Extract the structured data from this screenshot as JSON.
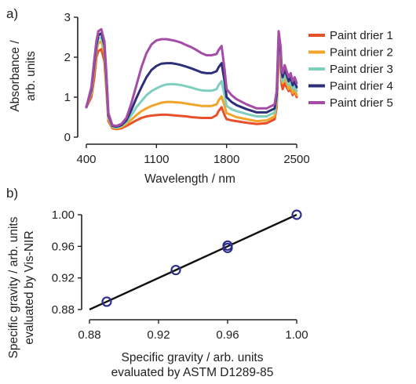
{
  "chart_data": [
    {
      "panel_label": "a)",
      "type": "line",
      "title": "",
      "xlabel": "Wavelength / nm",
      "ylabel": [
        "Absorbance /",
        "arb. units"
      ],
      "xlim": [
        400,
        2500
      ],
      "ylim": [
        0,
        3
      ],
      "xticks": [
        400,
        1100,
        1800,
        2500
      ],
      "yticks": [
        0,
        1,
        2,
        3
      ],
      "grid": false,
      "legend_placement": "right",
      "x": [
        400,
        450,
        480,
        500,
        520,
        550,
        580,
        600,
        620,
        660,
        700,
        750,
        800,
        850,
        900,
        950,
        1000,
        1050,
        1100,
        1150,
        1200,
        1250,
        1300,
        1350,
        1400,
        1450,
        1500,
        1550,
        1600,
        1650,
        1700,
        1720,
        1750,
        1780,
        1800,
        1850,
        1900,
        2000,
        2100,
        2200,
        2280,
        2300,
        2320,
        2340,
        2350,
        2360,
        2380,
        2400,
        2420,
        2440,
        2460,
        2480,
        2500
      ],
      "series": [
        {
          "name": "Paint drier 1",
          "color": "#e8502c",
          "values": [
            0.75,
            1.0,
            1.5,
            2.0,
            2.15,
            2.2,
            1.9,
            1.2,
            0.4,
            0.22,
            0.2,
            0.22,
            0.28,
            0.35,
            0.42,
            0.48,
            0.52,
            0.54,
            0.55,
            0.56,
            0.56,
            0.55,
            0.54,
            0.53,
            0.52,
            0.5,
            0.49,
            0.48,
            0.48,
            0.48,
            0.55,
            0.65,
            0.75,
            0.55,
            0.45,
            0.42,
            0.4,
            0.36,
            0.33,
            0.35,
            0.45,
            0.75,
            2.0,
            1.8,
            1.3,
            1.2,
            1.35,
            1.25,
            1.15,
            1.2,
            1.05,
            1.15,
            1.0
          ]
        },
        {
          "name": "Paint drier 2",
          "color": "#f0a52a",
          "values": [
            0.75,
            1.1,
            1.7,
            2.15,
            2.35,
            2.4,
            2.1,
            1.3,
            0.45,
            0.24,
            0.22,
            0.25,
            0.33,
            0.44,
            0.55,
            0.65,
            0.72,
            0.78,
            0.82,
            0.86,
            0.88,
            0.88,
            0.87,
            0.86,
            0.84,
            0.82,
            0.8,
            0.78,
            0.78,
            0.78,
            0.82,
            0.92,
            1.02,
            0.78,
            0.6,
            0.55,
            0.5,
            0.45,
            0.4,
            0.42,
            0.52,
            0.85,
            2.2,
            1.95,
            1.45,
            1.35,
            1.5,
            1.35,
            1.2,
            1.3,
            1.1,
            1.2,
            1.05
          ]
        },
        {
          "name": "Paint drier 3",
          "color": "#7ecfbe",
          "values": [
            0.75,
            1.15,
            1.8,
            2.25,
            2.45,
            2.5,
            2.2,
            1.4,
            0.5,
            0.26,
            0.24,
            0.28,
            0.38,
            0.55,
            0.75,
            0.9,
            1.05,
            1.15,
            1.22,
            1.28,
            1.32,
            1.33,
            1.32,
            1.3,
            1.27,
            1.24,
            1.2,
            1.17,
            1.16,
            1.16,
            1.2,
            1.3,
            1.4,
            1.05,
            0.78,
            0.7,
            0.65,
            0.58,
            0.52,
            0.52,
            0.62,
            0.95,
            2.35,
            2.05,
            1.55,
            1.4,
            1.6,
            1.45,
            1.3,
            1.4,
            1.2,
            1.3,
            1.15
          ]
        },
        {
          "name": "Paint drier 4",
          "color": "#2d2f7a",
          "values": [
            0.75,
            1.2,
            1.85,
            2.3,
            2.55,
            2.6,
            2.3,
            1.5,
            0.55,
            0.28,
            0.26,
            0.3,
            0.42,
            0.68,
            0.98,
            1.25,
            1.5,
            1.68,
            1.78,
            1.84,
            1.85,
            1.85,
            1.83,
            1.8,
            1.76,
            1.72,
            1.67,
            1.62,
            1.6,
            1.6,
            1.65,
            1.75,
            1.85,
            1.4,
            1.0,
            0.88,
            0.8,
            0.7,
            0.62,
            0.62,
            0.72,
            1.05,
            2.5,
            2.15,
            1.62,
            1.5,
            1.7,
            1.55,
            1.4,
            1.5,
            1.3,
            1.4,
            1.25
          ]
        },
        {
          "name": "Paint drier 5",
          "color": "#a44ca6",
          "values": [
            0.75,
            1.25,
            1.95,
            2.4,
            2.65,
            2.7,
            2.4,
            1.6,
            0.6,
            0.3,
            0.28,
            0.33,
            0.48,
            0.85,
            1.3,
            1.75,
            2.1,
            2.32,
            2.42,
            2.45,
            2.45,
            2.43,
            2.4,
            2.36,
            2.3,
            2.25,
            2.18,
            2.1,
            2.05,
            2.05,
            2.08,
            2.18,
            2.28,
            1.7,
            1.2,
            1.05,
            0.95,
            0.82,
            0.72,
            0.72,
            0.82,
            1.15,
            2.65,
            2.25,
            1.7,
            1.6,
            1.8,
            1.65,
            1.5,
            1.6,
            1.4,
            1.5,
            1.35
          ]
        }
      ]
    },
    {
      "panel_label": "b)",
      "type": "scatter",
      "title": "",
      "xlabel": [
        "Specific gravity / arb. units",
        "evaluated by ASTM D1289-85"
      ],
      "ylabel": [
        "Specific gravity / arb. units",
        "evaluated by Vis-NIR"
      ],
      "xlim": [
        0.88,
        1.0
      ],
      "ylim": [
        0.88,
        1.0
      ],
      "xticks": [
        "0.88",
        "0.92",
        "0.96",
        "1.00"
      ],
      "yticks": [
        "0.88",
        "0.92",
        "0.96",
        "1.00"
      ],
      "grid": false,
      "points": [
        {
          "x": 0.89,
          "y": 0.89
        },
        {
          "x": 0.93,
          "y": 0.93
        },
        {
          "x": 0.96,
          "y": 0.958
        },
        {
          "x": 0.96,
          "y": 0.961
        },
        {
          "x": 1.0,
          "y": 1.0
        }
      ],
      "marker_color": "#2d2f8a",
      "fit_line": {
        "x": [
          0.88,
          1.0
        ],
        "y": [
          0.88,
          1.0
        ],
        "color": "#111111"
      }
    }
  ]
}
